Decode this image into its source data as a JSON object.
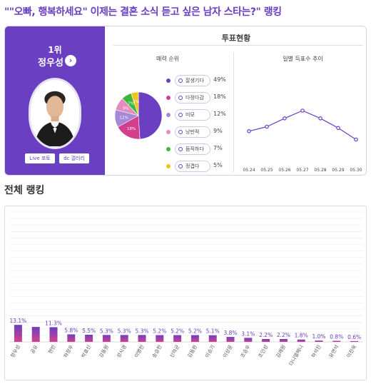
{
  "page": {
    "title": "\"\"오빠, 행복하세요\" 이제는 결혼 소식 듣고 싶은 남자 스타는?\" 랭킹"
  },
  "winner": {
    "rank_label": "1위",
    "name": "정우성",
    "live_button": "Live 포토",
    "gallery_button": "dc 갤러리"
  },
  "vote_status": {
    "title": "투표현황",
    "charm_title": "매력 순위",
    "daily_title": "일별 득표수 추이"
  },
  "colors": {
    "accent": "#6a3fc1",
    "bar_top": "#6a3fc1",
    "bar_bottom": "#d43f8d"
  },
  "chart_data": [
    {
      "type": "pie",
      "title": "매력 순위",
      "categories": [
        "잘생기다",
        "다정다감",
        "미모",
        "낭만적",
        "듬직하다",
        "정겹다"
      ],
      "values": [
        49,
        18,
        12,
        9,
        7,
        5
      ],
      "value_labels": [
        "49%",
        "18%",
        "12%",
        "9%",
        "7%",
        "5%"
      ],
      "slice_labels": [
        "",
        "18%",
        "12%",
        "9%",
        "7%",
        "5%"
      ],
      "colors": [
        "#6a3fc1",
        "#d43f8d",
        "#a688d8",
        "#e58bbf",
        "#3fb83f",
        "#f2c21a"
      ],
      "legend": "right"
    },
    {
      "type": "line",
      "title": "일별 득표수 추이",
      "x": [
        "05.24",
        "05.25",
        "05.26",
        "05.27",
        "05.28",
        "05.29",
        "05.30"
      ],
      "values": [
        48,
        55,
        68,
        80,
        68,
        53,
        35
      ],
      "ylim": [
        0,
        100
      ],
      "grid": false,
      "color": "#6a3fc1"
    },
    {
      "type": "bar",
      "title": "전체 랭킹",
      "categories": [
        "정우성",
        "공유",
        "현빈",
        "하정우",
        "박효신",
        "강동원",
        "성시경",
        "이병헌",
        "송승헌",
        "신하균",
        "김동완",
        "이승기",
        "이상윤",
        "조승우",
        "조인성",
        "김래원",
        "다니엘헤니",
        "하석진",
        "유연석",
        "이진욱"
      ],
      "values": [
        13.1,
        11.5,
        11.3,
        5.8,
        5.5,
        5.3,
        5.3,
        5.3,
        5.2,
        5.2,
        5.2,
        5.1,
        3.8,
        3.1,
        2.2,
        2.2,
        1.8,
        1.0,
        0.8,
        0.6
      ],
      "value_labels": [
        "13.1%",
        "",
        "11.3%",
        "5.8%",
        "5.5%",
        "5.3%",
        "5.3%",
        "5.3%",
        "5.2%",
        "5.2%",
        "5.2%",
        "5.1%",
        "3.8%",
        "3.1%",
        "2.2%",
        "2.2%",
        "1.8%",
        "1.0%",
        "0.8%",
        "0.6%"
      ],
      "ylim": [
        0,
        100
      ],
      "grid": true
    }
  ]
}
